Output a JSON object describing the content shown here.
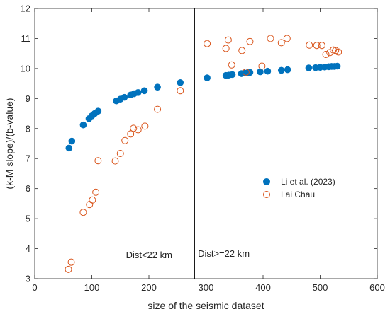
{
  "chart_data": {
    "type": "scatter",
    "xlabel": "size of the seismic dataset",
    "ylabel": "(k-M slope)/(b-value)",
    "xlim": [
      0,
      600
    ],
    "ylim": [
      3,
      12
    ],
    "xticks": [
      0,
      100,
      200,
      300,
      400,
      500,
      600
    ],
    "yticks": [
      3,
      4,
      5,
      6,
      7,
      8,
      9,
      10,
      11,
      12
    ],
    "grid": false,
    "legend_position": "right-middle",
    "vline": 280,
    "annotations": [
      {
        "text": "Dist<22 km",
        "x": 197,
        "y": 3.8
      },
      {
        "text": "Dist>=22 km",
        "x": 333,
        "y": 3.8
      }
    ],
    "series": [
      {
        "name": "Li et al. (2023)",
        "marker": "filled-circle",
        "color": "#0072BD",
        "points": [
          [
            60,
            7.35
          ],
          [
            65,
            7.58
          ],
          [
            85,
            8.12
          ],
          [
            95,
            8.33
          ],
          [
            100,
            8.42
          ],
          [
            105,
            8.5
          ],
          [
            111,
            8.58
          ],
          [
            143,
            8.92
          ],
          [
            150,
            8.98
          ],
          [
            157,
            9.04
          ],
          [
            168,
            9.12
          ],
          [
            174,
            9.16
          ],
          [
            181,
            9.2
          ],
          [
            192,
            9.26
          ],
          [
            215,
            9.38
          ],
          [
            255,
            9.53
          ],
          [
            302,
            9.69
          ],
          [
            335,
            9.77
          ],
          [
            340,
            9.78
          ],
          [
            346,
            9.8
          ],
          [
            362,
            9.83
          ],
          [
            367,
            9.85
          ],
          [
            373,
            9.86
          ],
          [
            377,
            9.87
          ],
          [
            395,
            9.89
          ],
          [
            408,
            9.91
          ],
          [
            432,
            9.94
          ],
          [
            443,
            9.96
          ],
          [
            480,
            10.02
          ],
          [
            492,
            10.03
          ],
          [
            500,
            10.04
          ],
          [
            508,
            10.05
          ],
          [
            515,
            10.06
          ],
          [
            520,
            10.07
          ],
          [
            525,
            10.07
          ],
          [
            530,
            10.08
          ]
        ]
      },
      {
        "name": "Lai Chau",
        "marker": "open-circle",
        "color": "#D95319",
        "points": [
          [
            59,
            3.31
          ],
          [
            64,
            3.55
          ],
          [
            85,
            5.21
          ],
          [
            96,
            5.47
          ],
          [
            101,
            5.62
          ],
          [
            107,
            5.88
          ],
          [
            111,
            6.93
          ],
          [
            141,
            6.92
          ],
          [
            150,
            7.17
          ],
          [
            158,
            7.6
          ],
          [
            168,
            7.82
          ],
          [
            173,
            8.01
          ],
          [
            181,
            7.96
          ],
          [
            193,
            8.08
          ],
          [
            215,
            8.64
          ],
          [
            255,
            9.26
          ],
          [
            302,
            10.83
          ],
          [
            335,
            10.67
          ],
          [
            339,
            10.95
          ],
          [
            345,
            10.12
          ],
          [
            363,
            10.6
          ],
          [
            370,
            9.88
          ],
          [
            377,
            10.9
          ],
          [
            398,
            10.08
          ],
          [
            413,
            11.0
          ],
          [
            432,
            10.86
          ],
          [
            442,
            11.0
          ],
          [
            481,
            10.78
          ],
          [
            494,
            10.77
          ],
          [
            503,
            10.77
          ],
          [
            510,
            10.47
          ],
          [
            517,
            10.53
          ],
          [
            523,
            10.62
          ],
          [
            527,
            10.6
          ],
          [
            532,
            10.55
          ]
        ]
      }
    ]
  }
}
